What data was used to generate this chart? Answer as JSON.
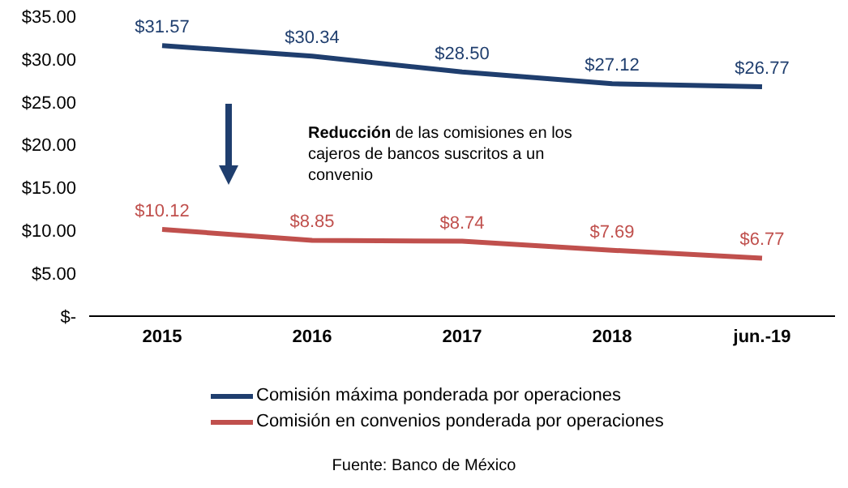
{
  "chart_data": {
    "type": "line",
    "categories": [
      "2015",
      "2016",
      "2017",
      "2018",
      "jun.-19"
    ],
    "series": [
      {
        "name": "Comisión máxima ponderada por operaciones",
        "color": "#1f3e6e",
        "values": [
          31.57,
          30.34,
          28.5,
          27.12,
          26.77
        ],
        "value_labels": [
          "$31.57",
          "$30.34",
          "$28.50",
          "$27.12",
          "$26.77"
        ]
      },
      {
        "name": "Comisión en convenios ponderada por operaciones",
        "color": "#c0504d",
        "values": [
          10.12,
          8.85,
          8.74,
          7.69,
          6.77
        ],
        "value_labels": [
          "$10.12",
          "$8.85",
          "$8.74",
          "$7.69",
          "$6.77"
        ]
      }
    ],
    "ylim": [
      0,
      35
    ],
    "yticks": [
      {
        "value": 0,
        "label": "$-"
      },
      {
        "value": 5,
        "label": "$5.00"
      },
      {
        "value": 10,
        "label": "$10.00"
      },
      {
        "value": 15,
        "label": "$15.00"
      },
      {
        "value": 20,
        "label": "$20.00"
      },
      {
        "value": 25,
        "label": "$25.00"
      },
      {
        "value": 30,
        "label": "$30.00"
      },
      {
        "value": 35,
        "label": "$35.00"
      }
    ],
    "grid": false,
    "legend": "bottom",
    "marker": "none",
    "annotations": [
      "Reducción de las comisiones en los cajeros de bancos suscritos a un convenio",
      "Fuente: Banco de México"
    ]
  }
}
